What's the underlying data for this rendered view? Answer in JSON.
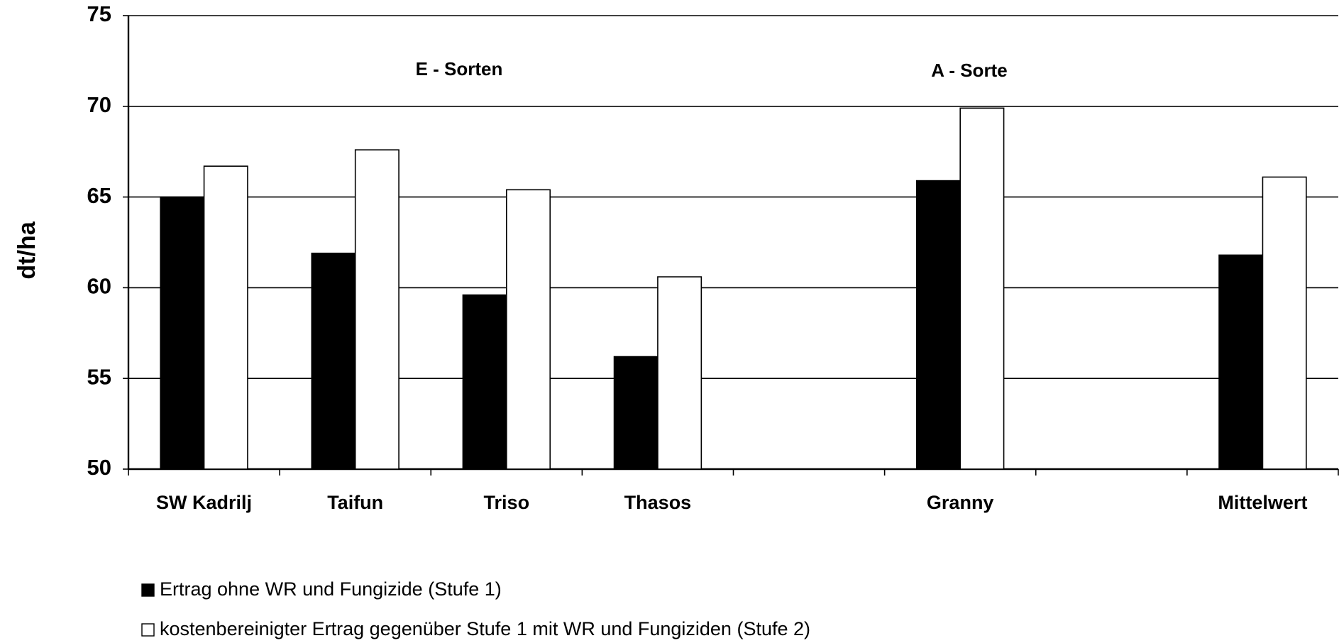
{
  "chart_data": {
    "type": "bar",
    "y_label": "dt/ha",
    "annotations": [
      "E - Sorten",
      "A - Sorte"
    ],
    "categories": [
      "SW Kadrilj",
      "Taifun",
      "Triso",
      "Thasos",
      null,
      "Granny",
      null,
      "Mittelwert"
    ],
    "series": [
      {
        "name": "Ertrag ohne WR und Fungizide (Stufe 1)",
        "color": "#000000",
        "values": [
          65,
          61.9,
          59.6,
          56.2,
          null,
          65.9,
          null,
          61.8
        ]
      },
      {
        "name": "kostenbereinigter Ertrag gegenüber Stufe 1 mit WR und Fungiziden (Stufe 2)",
        "color": "#ffffff",
        "values": [
          66.7,
          67.6,
          65.4,
          60.6,
          null,
          69.9,
          null,
          66.1
        ]
      }
    ],
    "ylim": [
      50,
      75
    ],
    "yticks": [
      50,
      55,
      60,
      65,
      70,
      75
    ],
    "grid": true,
    "legend": "bottom-left"
  }
}
